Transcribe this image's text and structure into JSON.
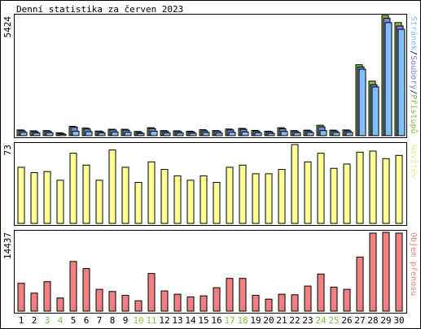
{
  "title": "Denní statistika za červen 2023",
  "colors": {
    "pages": "#80c0f8",
    "files": "#8080e0",
    "hits": "#80c040",
    "visits": "#ffff99",
    "traffic": "#f08080",
    "weekend_day": "#80c040",
    "weekday_day": "#000000"
  },
  "chart_data": [
    {
      "type": "bar",
      "title": "Denní statistika za červen 2023",
      "ylabel": "Stránek/Soubory/Přístupů",
      "ymax_label": "5424",
      "ylim": [
        0,
        5424
      ],
      "categories": [
        "1",
        "2",
        "3",
        "4",
        "5",
        "6",
        "7",
        "8",
        "9",
        "10",
        "11",
        "12",
        "13",
        "14",
        "15",
        "16",
        "17",
        "18",
        "19",
        "20",
        "21",
        "22",
        "23",
        "24",
        "25",
        "26",
        "27",
        "28",
        "29",
        "30"
      ],
      "series": [
        {
          "name": "Přístupů",
          "values": [
            260,
            220,
            230,
            130,
            420,
            340,
            210,
            290,
            290,
            190,
            360,
            230,
            220,
            200,
            270,
            230,
            300,
            330,
            240,
            200,
            360,
            230,
            250,
            470,
            250,
            260,
            3200,
            2460,
            5424,
            5100
          ]
        },
        {
          "name": "Soubory",
          "values": [
            220,
            180,
            200,
            100,
            380,
            300,
            180,
            260,
            250,
            150,
            320,
            190,
            190,
            170,
            220,
            200,
            260,
            290,
            200,
            170,
            310,
            190,
            210,
            400,
            210,
            220,
            3100,
            2300,
            5300,
            4950
          ]
        },
        {
          "name": "Stránek",
          "values": [
            150,
            120,
            130,
            60,
            200,
            180,
            120,
            160,
            150,
            100,
            200,
            120,
            120,
            110,
            140,
            120,
            150,
            170,
            130,
            100,
            190,
            130,
            140,
            230,
            140,
            150,
            3000,
            2200,
            5100,
            4800
          ]
        }
      ]
    },
    {
      "type": "bar",
      "ylabel": "Návštěv",
      "ymax_label": "73",
      "ylim": [
        0,
        73
      ],
      "categories": [
        "1",
        "2",
        "3",
        "4",
        "5",
        "6",
        "7",
        "8",
        "9",
        "10",
        "11",
        "12",
        "13",
        "14",
        "15",
        "16",
        "17",
        "18",
        "19",
        "20",
        "21",
        "22",
        "23",
        "24",
        "25",
        "26",
        "27",
        "28",
        "29",
        "30"
      ],
      "series": [
        {
          "name": "Návštěv",
          "values": [
            52,
            47,
            48,
            40,
            65,
            54,
            40,
            68,
            52,
            38,
            57,
            50,
            44,
            40,
            44,
            38,
            52,
            54,
            46,
            46,
            50,
            73,
            57,
            65,
            51,
            55,
            66,
            67,
            60,
            63
          ]
        }
      ]
    },
    {
      "type": "bar",
      "ylabel": "Objem přenosu",
      "ymax_label": "14437",
      "ylim": [
        0,
        14437
      ],
      "categories": [
        "1",
        "2",
        "3",
        "4",
        "5",
        "6",
        "7",
        "8",
        "9",
        "10",
        "11",
        "12",
        "13",
        "14",
        "15",
        "16",
        "17",
        "18",
        "19",
        "20",
        "21",
        "22",
        "23",
        "24",
        "25",
        "26",
        "27",
        "28",
        "29",
        "30"
      ],
      "series": [
        {
          "name": "Objem přenosu",
          "values": [
            5100,
            3300,
            5400,
            2400,
            9100,
            7800,
            4000,
            3600,
            2900,
            1900,
            6900,
            3700,
            3100,
            2600,
            2800,
            4300,
            6000,
            6000,
            2900,
            2200,
            3100,
            3000,
            4600,
            6800,
            4400,
            4000,
            9900,
            14300,
            14437,
            14300
          ]
        }
      ]
    }
  ],
  "day_labels": [
    "1",
    "2",
    "3",
    "4",
    "5",
    "6",
    "7",
    "8",
    "9",
    "10",
    "11",
    "12",
    "13",
    "14",
    "15",
    "16",
    "17",
    "18",
    "19",
    "20",
    "21",
    "22",
    "23",
    "24",
    "25",
    "26",
    "27",
    "28",
    "29",
    "30"
  ],
  "weekend_days": [
    "3",
    "4",
    "10",
    "11",
    "17",
    "18",
    "24",
    "25"
  ],
  "legend_top": [
    {
      "text": "Stránek",
      "color": "#80c0f8"
    },
    {
      "text": "/",
      "color": "#000000"
    },
    {
      "text": "Soubory",
      "color": "#8080e0"
    },
    {
      "text": "/",
      "color": "#000000"
    },
    {
      "text": "Přístupů",
      "color": "#80c040"
    }
  ],
  "legend_mid": {
    "text": "Návštěv",
    "color": "#e8e890"
  },
  "legend_bot": {
    "text": "Objem přenosu",
    "color": "#f08080"
  }
}
